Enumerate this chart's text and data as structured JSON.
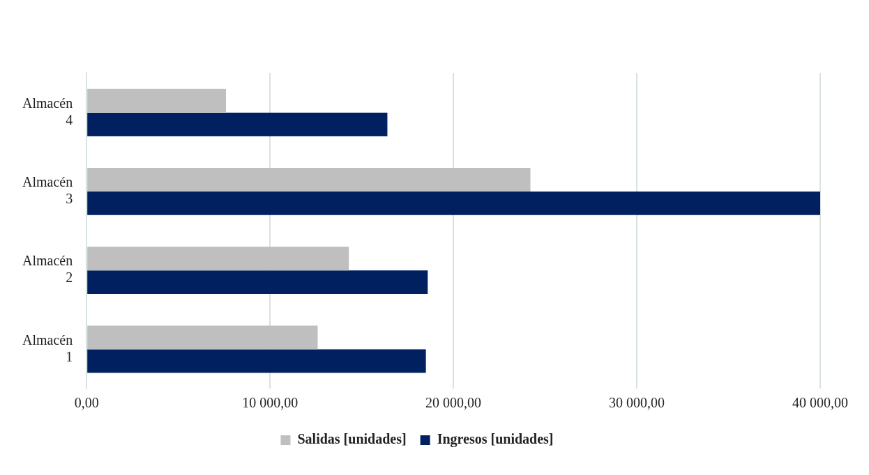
{
  "chart_data": {
    "type": "bar",
    "orientation": "horizontal",
    "categories": [
      "Almacén 4",
      "Almacén 3",
      "Almacén 2",
      "Almacén 1"
    ],
    "series": [
      {
        "name": "Salidas [unidades]",
        "color": "#bfbfbf",
        "values": [
          7600,
          24200,
          14300,
          12600
        ]
      },
      {
        "name": "Ingresos [unidades]",
        "color": "#002060",
        "values": [
          16400,
          40000,
          18600,
          18500
        ]
      }
    ],
    "xlim": [
      0,
      40000
    ],
    "xticks": [
      {
        "value": 0,
        "label": "0,00"
      },
      {
        "value": 10000,
        "label": "10 000,00"
      },
      {
        "value": 20000,
        "label": "20 000,00"
      },
      {
        "value": 30000,
        "label": "30 000,00"
      },
      {
        "value": 40000,
        "label": "40 000,00"
      }
    ],
    "grid": "x",
    "legend": "bottom"
  }
}
